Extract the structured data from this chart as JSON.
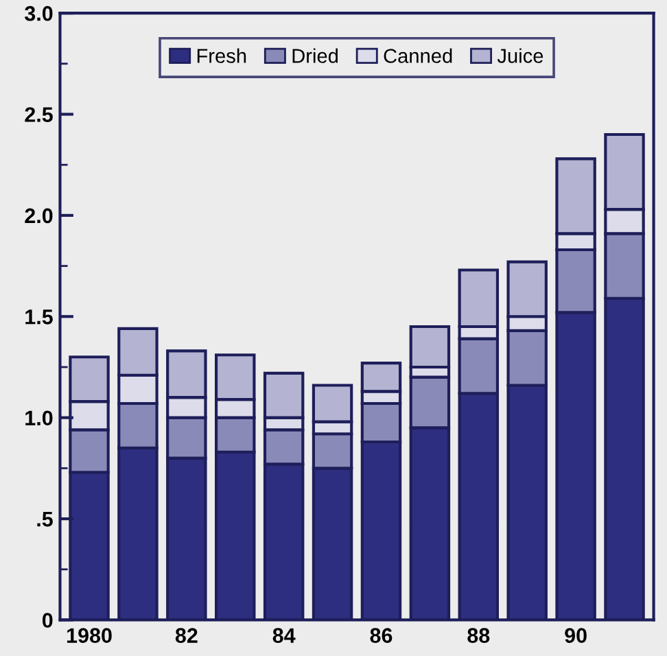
{
  "chart_data": {
    "type": "bar",
    "stacked": true,
    "categories": [
      "1980",
      null,
      "82",
      null,
      "84",
      null,
      "86",
      null,
      "88",
      null,
      "90",
      null
    ],
    "series": [
      {
        "name": "Fresh",
        "color": "#2e2e80",
        "values": [
          0.73,
          0.85,
          0.8,
          0.83,
          0.77,
          0.75,
          0.88,
          0.95,
          1.12,
          1.16,
          1.52,
          1.59
        ]
      },
      {
        "name": "Dried",
        "color": "#8a8ab8",
        "values": [
          0.21,
          0.22,
          0.2,
          0.17,
          0.17,
          0.17,
          0.19,
          0.25,
          0.27,
          0.27,
          0.31,
          0.32
        ]
      },
      {
        "name": "Canned",
        "color": "#dcdcea",
        "values": [
          0.14,
          0.14,
          0.1,
          0.09,
          0.06,
          0.06,
          0.06,
          0.05,
          0.06,
          0.07,
          0.08,
          0.12
        ]
      },
      {
        "name": "Juice",
        "color": "#b4b4d2",
        "values": [
          0.22,
          0.23,
          0.23,
          0.22,
          0.22,
          0.18,
          0.14,
          0.2,
          0.28,
          0.27,
          0.37,
          0.37
        ]
      }
    ],
    "ylim": [
      0,
      3
    ],
    "yticks": [
      0,
      {
        "value": 0.25,
        "label": null
      },
      {
        "value": 0.5,
        "label": ".5"
      },
      {
        "value": 0.75,
        "label": null
      },
      {
        "value": 1,
        "label": "1.0"
      },
      {
        "value": 1.25,
        "label": null
      },
      {
        "value": 1.5,
        "label": "1.5"
      },
      {
        "value": 1.75,
        "label": null
      },
      {
        "value": 2,
        "label": "2.0"
      },
      {
        "value": 2.25,
        "label": null
      },
      {
        "value": 2.5,
        "label": "2.5"
      },
      {
        "value": 2.75,
        "label": null
      },
      {
        "value": 3,
        "label": "3.0"
      }
    ],
    "grid": false,
    "legend": "top"
  }
}
